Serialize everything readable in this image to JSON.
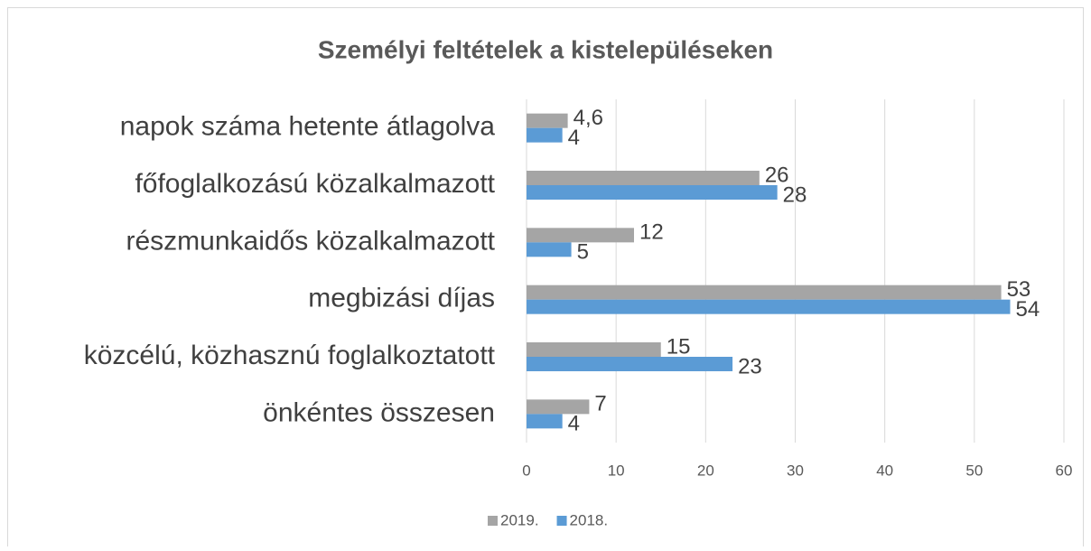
{
  "chart_data": {
    "type": "hbar",
    "title": "Személyi feltételek a kistelepüléseken",
    "categories": [
      "napok száma hetente átlagolva",
      "főfoglalkozású közalkalmazott",
      "részmunkaidős közalkalmazott",
      "megbizási díjas",
      "közcélú, közhasznú foglalkoztatott",
      "önkéntes összesen"
    ],
    "series": [
      {
        "name": "2019.",
        "color": "#a5a5a5",
        "values": [
          4.6,
          26,
          12,
          53,
          15,
          7
        ],
        "value_labels": [
          "4,6",
          "26",
          "12",
          "53",
          "15",
          "7"
        ]
      },
      {
        "name": "2018.",
        "color": "#5b9bd5",
        "values": [
          4,
          28,
          5,
          54,
          23,
          4
        ]
      }
    ],
    "xlim": [
      0,
      60
    ],
    "xticks": [
      0,
      10,
      20,
      30,
      40,
      50,
      60
    ],
    "grid": true,
    "legend": "bottom"
  }
}
